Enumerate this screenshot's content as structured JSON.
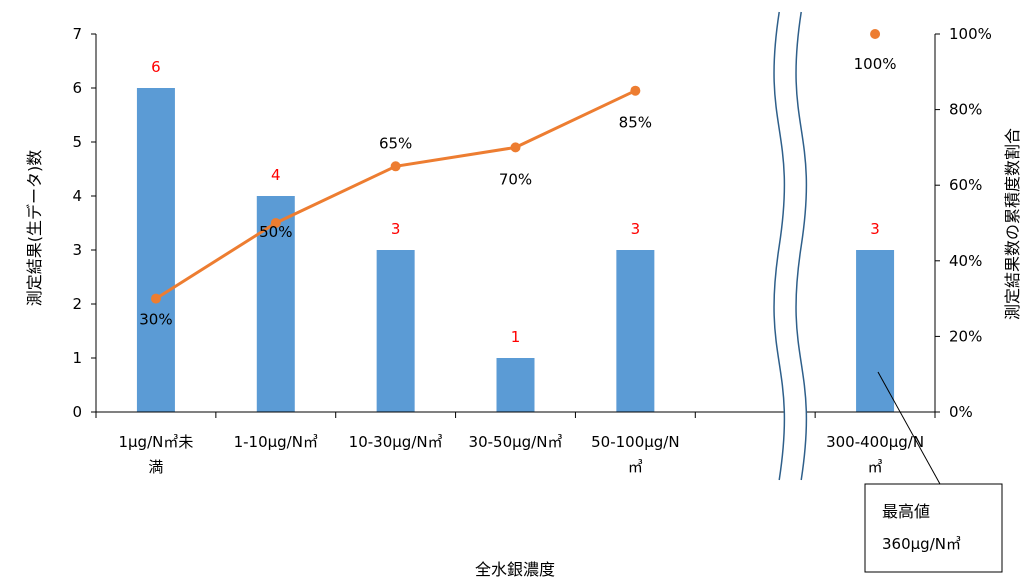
{
  "chart_data": {
    "type": "bar",
    "title": "",
    "xlabel": "全水銀濃度",
    "ylabel": "測定結果(生データ)数",
    "y2label": "測定結果数の累積度数割合",
    "categories": [
      [
        "1μg/N㎥未",
        "満"
      ],
      [
        "1-10μg/N㎥"
      ],
      [
        "10-30μg/N㎥"
      ],
      [
        "30-50μg/N㎥"
      ],
      [
        "50-100μg/N",
        "㎥"
      ],
      [
        ""
      ],
      [
        "300-400μg/N",
        "㎥"
      ]
    ],
    "ylim": [
      0,
      7
    ],
    "yticks": [
      0,
      1,
      2,
      3,
      4,
      5,
      6,
      7
    ],
    "y2lim": [
      0,
      100
    ],
    "y2ticks": [
      "0%",
      "20%",
      "40%",
      "60%",
      "80%",
      "100%"
    ],
    "series": [
      {
        "type": "bar",
        "color": "#5b9bd5",
        "values": [
          6,
          4,
          3,
          1,
          3,
          null,
          3
        ],
        "labels": [
          "6",
          "4",
          "3",
          "1",
          "3",
          "",
          "3"
        ],
        "label_color": "#ff0000"
      },
      {
        "type": "line",
        "axis": "right",
        "color": "#ed7d31",
        "values": [
          30,
          50,
          65,
          70,
          85,
          null,
          100
        ],
        "labels": [
          "30%",
          "50%",
          "65%",
          "70%",
          "85%",
          "",
          "100%"
        ]
      }
    ],
    "axis_break": "between 50-100μg/N㎥ and 300-400μg/N㎥",
    "annotation": {
      "line1": "最高値",
      "line2": "360μg/N㎥"
    },
    "grid": false,
    "legend": "none"
  }
}
